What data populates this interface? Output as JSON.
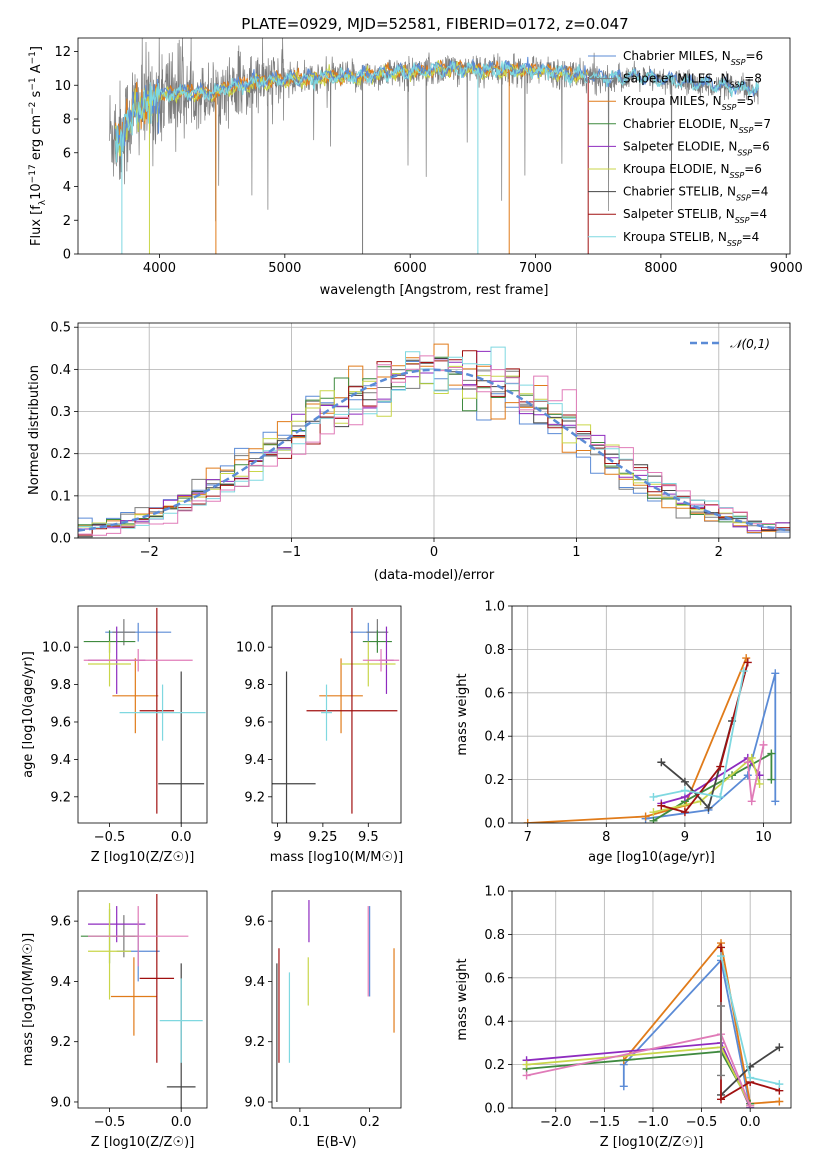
{
  "title": "PLATE=0929, MJD=52581, FIBERID=0172, z=0.047",
  "colors": {
    "Chabrier MILES": "#5b8bd6",
    "Salpeter MILES": "#7b7b7b",
    "Kroupa MILES": "#e07b1a",
    "Chabrier ELODIE": "#3f8a3f",
    "Salpeter ELODIE": "#8e2bbf",
    "Kroupa ELODIE": "#c9d64a",
    "Chabrier STELIB": "#444444",
    "Salpeter STELIB": "#a01010",
    "Kroupa STELIB": "#7fd8e0",
    "pink": "#e07bb8",
    "normal": "#5b8bd6"
  },
  "chart_data": [
    {
      "id": "spectrum",
      "type": "line",
      "title": "PLATE=0929, MJD=52581, FIBERID=0172, z=0.047",
      "xlabel": "wavelength [Angstrom, rest frame]",
      "ylabel_parts": [
        "Flux [f",
        "λ",
        "10",
        "−17",
        " erg cm",
        "−2",
        " s",
        "−1",
        " A",
        "−1",
        "]"
      ],
      "xlim": [
        3350,
        9030
      ],
      "ylim": [
        0,
        12.8
      ],
      "xticks": [
        4000,
        5000,
        6000,
        7000,
        8000,
        9000
      ],
      "yticks": [
        0,
        2,
        4,
        6,
        8,
        10,
        12
      ],
      "legend_position": "right",
      "legend": [
        {
          "name": "Chabrier MILES",
          "n": "6"
        },
        {
          "name": "Salpeter MILES",
          "n": "8"
        },
        {
          "name": "Kroupa MILES",
          "n": "5"
        },
        {
          "name": "Chabrier ELODIE",
          "n": "7"
        },
        {
          "name": "Salpeter ELODIE",
          "n": "6"
        },
        {
          "name": "Kroupa ELODIE",
          "n": "6"
        },
        {
          "name": "Chabrier STELIB",
          "n": "4"
        },
        {
          "name": "Salpeter STELIB",
          "n": "4"
        },
        {
          "name": "Kroupa STELIB",
          "n": "4"
        }
      ],
      "legend_n_prefix": "N",
      "legend_n_sub": "SSP",
      "continuum": [
        [
          3600,
          7.2
        ],
        [
          3700,
          7.0
        ],
        [
          3800,
          8.6
        ],
        [
          3900,
          8.8
        ],
        [
          4000,
          9.4
        ],
        [
          4100,
          9.5
        ],
        [
          4200,
          9.6
        ],
        [
          4400,
          9.5
        ],
        [
          4600,
          9.9
        ],
        [
          4800,
          10.2
        ],
        [
          5000,
          10.3
        ],
        [
          5200,
          10.4
        ],
        [
          5400,
          10.5
        ],
        [
          5600,
          10.5
        ],
        [
          5800,
          10.7
        ],
        [
          6000,
          10.8
        ],
        [
          6200,
          10.9
        ],
        [
          6400,
          11.0
        ],
        [
          6600,
          10.9
        ],
        [
          6800,
          10.9
        ],
        [
          7000,
          10.9
        ],
        [
          7200,
          10.7
        ],
        [
          7400,
          10.5
        ],
        [
          7600,
          10.4
        ],
        [
          7800,
          10.5
        ],
        [
          8000,
          10.3
        ],
        [
          8200,
          10.2
        ],
        [
          8400,
          10.0
        ],
        [
          8600,
          9.8
        ],
        [
          8780,
          9.7
        ]
      ]
    },
    {
      "id": "residuals",
      "type": "histogram",
      "xlabel": "(data-model)/error",
      "ylabel": "Normed distribution",
      "xlim": [
        -2.5,
        2.5
      ],
      "ylim": [
        0,
        0.51
      ],
      "xticks": [
        -2,
        -1,
        0,
        1,
        2
      ],
      "yticks": [
        0.0,
        0.1,
        0.2,
        0.3,
        0.4,
        0.5
      ],
      "bin_width": 0.1,
      "legend": "𝒩(0,1)",
      "legend_position": "top-right",
      "grid": true
    },
    {
      "id": "age-vs-Z",
      "type": "errorbar",
      "xlabel": "Z [log10(Z/Z☉)]",
      "ylabel": "age  [log10(age/yr)]",
      "xlim": [
        -0.72,
        0.18
      ],
      "ylim": [
        9.06,
        10.22
      ],
      "xticks": [
        -0.5,
        0.0
      ],
      "yticks": [
        9.2,
        9.4,
        9.6,
        9.8,
        10.0
      ],
      "points": [
        {
          "c": "Chabrier MILES",
          "x": -0.3,
          "xerr": 0.23,
          "y": 10.08,
          "yerr": 0.05
        },
        {
          "c": "Salpeter MILES",
          "x": -0.4,
          "xerr": 0.08,
          "y": 10.08,
          "yerr": 0.07
        },
        {
          "c": "Kroupa MILES",
          "x": -0.32,
          "xerr": 0.16,
          "y": 9.74,
          "yerr": 0.2
        },
        {
          "c": "Chabrier ELODIE",
          "x": -0.5,
          "xerr": 0.18,
          "y": 10.03,
          "yerr": 0.06
        },
        {
          "c": "Salpeter ELODIE",
          "x": -0.45,
          "xerr": 0.2,
          "y": 9.93,
          "yerr": 0.18
        },
        {
          "c": "Kroupa ELODIE",
          "x": -0.5,
          "xerr": 0.15,
          "y": 9.91,
          "yerr": 0.12
        },
        {
          "c": "Chabrier STELIB",
          "x": 0.0,
          "xerr": 0.16,
          "y": 9.27,
          "yerr": 0.6
        },
        {
          "c": "Salpeter STELIB",
          "x": -0.17,
          "xerr": 0.12,
          "y": 9.66,
          "yerr": 0.55
        },
        {
          "c": "Kroupa STELIB",
          "x": -0.13,
          "xerr": 0.3,
          "y": 9.65,
          "yerr": 0.15
        },
        {
          "c": "pink",
          "x": -0.3,
          "xerr": 0.38,
          "y": 9.93,
          "yerr": 0.06
        }
      ]
    },
    {
      "id": "age-vs-mass",
      "type": "errorbar",
      "xlabel": "mass [log10(M/M☉)]",
      "ylabel": "",
      "xlim": [
        8.97,
        9.68
      ],
      "ylim": [
        9.06,
        10.22
      ],
      "xticks": [
        9.0,
        9.25,
        9.5
      ],
      "yticks": [
        9.2,
        9.4,
        9.6,
        9.8,
        10.0
      ],
      "points": [
        {
          "c": "Chabrier MILES",
          "x": 9.5,
          "xerr": 0.1,
          "y": 10.08,
          "yerr": 0.05
        },
        {
          "c": "Salpeter MILES",
          "x": 9.55,
          "xerr": 0.06,
          "y": 10.08,
          "yerr": 0.07
        },
        {
          "c": "Kroupa MILES",
          "x": 9.35,
          "xerr": 0.12,
          "y": 9.74,
          "yerr": 0.2
        },
        {
          "c": "Chabrier ELODIE",
          "x": 9.55,
          "xerr": 0.08,
          "y": 10.03,
          "yerr": 0.06
        },
        {
          "c": "Salpeter ELODIE",
          "x": 9.6,
          "xerr": 0.04,
          "y": 9.93,
          "yerr": 0.18
        },
        {
          "c": "Kroupa ELODIE",
          "x": 9.5,
          "xerr": 0.15,
          "y": 9.91,
          "yerr": 0.12
        },
        {
          "c": "Chabrier STELIB",
          "x": 9.05,
          "xerr": 0.16,
          "y": 9.27,
          "yerr": 0.6
        },
        {
          "c": "Salpeter STELIB",
          "x": 9.41,
          "xerr": 0.25,
          "y": 9.66,
          "yerr": 0.55
        },
        {
          "c": "Kroupa STELIB",
          "x": 9.27,
          "xerr": 0.03,
          "y": 9.65,
          "yerr": 0.15
        },
        {
          "c": "pink",
          "x": 9.57,
          "xerr": 0.1,
          "y": 9.93,
          "yerr": 0.06
        }
      ]
    },
    {
      "id": "weight-vs-age",
      "type": "line",
      "xlabel": "age  [log10(age/yr)]",
      "ylabel": "mass weight",
      "xlim": [
        6.8,
        10.35
      ],
      "ylim": [
        0,
        1.0
      ],
      "xticks": [
        7,
        8,
        9,
        10
      ],
      "yticks": [
        0.0,
        0.2,
        0.4,
        0.6,
        0.8,
        1.0
      ],
      "grid": true,
      "series": [
        {
          "c": "Chabrier MILES",
          "points": [
            [
              8.5,
              0.02
            ],
            [
              9.3,
              0.06
            ],
            [
              9.8,
              0.22
            ],
            [
              10.15,
              0.69
            ],
            [
              10.15,
              0.1
            ]
          ]
        },
        {
          "c": "Kroupa MILES",
          "points": [
            [
              7.0,
              0.0
            ],
            [
              8.5,
              0.03
            ],
            [
              9.0,
              0.08
            ],
            [
              9.78,
              0.76
            ]
          ]
        },
        {
          "c": "Chabrier ELODIE",
          "points": [
            [
              8.6,
              0.01
            ],
            [
              9.0,
              0.1
            ],
            [
              9.6,
              0.22
            ],
            [
              10.1,
              0.32
            ],
            [
              10.1,
              0.2
            ]
          ]
        },
        {
          "c": "Salpeter ELODIE",
          "points": [
            [
              8.7,
              0.09
            ],
            [
              9.0,
              0.12
            ],
            [
              9.8,
              0.3
            ],
            [
              9.95,
              0.22
            ]
          ]
        },
        {
          "c": "Kroupa ELODIE",
          "points": [
            [
              8.6,
              0.05
            ],
            [
              9.2,
              0.1
            ],
            [
              9.85,
              0.3
            ],
            [
              9.95,
              0.18
            ]
          ]
        },
        {
          "c": "Chabrier STELIB",
          "points": [
            [
              8.7,
              0.28
            ],
            [
              9.0,
              0.19
            ],
            [
              9.3,
              0.07
            ],
            [
              9.6,
              0.47
            ]
          ]
        },
        {
          "c": "Salpeter STELIB",
          "points": [
            [
              8.7,
              0.08
            ],
            [
              9.0,
              0.05
            ],
            [
              9.45,
              0.26
            ],
            [
              9.8,
              0.74
            ]
          ]
        },
        {
          "c": "Kroupa STELIB",
          "points": [
            [
              8.6,
              0.12
            ],
            [
              9.0,
              0.15
            ],
            [
              9.45,
              0.12
            ],
            [
              9.75,
              0.7
            ]
          ]
        },
        {
          "c": "pink",
          "points": [
            [
              9.8,
              0.28
            ],
            [
              9.85,
              0.1
            ],
            [
              10.0,
              0.36
            ]
          ]
        }
      ]
    },
    {
      "id": "mass-vs-Z",
      "type": "errorbar",
      "xlabel": "Z [log10(Z/Z☉)]",
      "ylabel": "mass [log10(M/M☉)]",
      "xlim": [
        -0.72,
        0.18
      ],
      "ylim": [
        8.98,
        9.7
      ],
      "xticks": [
        -0.5,
        0.0
      ],
      "yticks": [
        9.0,
        9.2,
        9.4,
        9.6
      ],
      "points": [
        {
          "c": "Chabrier MILES",
          "x": -0.3,
          "xerr": 0.15,
          "y": 9.5,
          "yerr": 0.1
        },
        {
          "c": "Salpeter MILES",
          "x": -0.4,
          "xerr": 0.08,
          "y": 9.55,
          "yerr": 0.07
        },
        {
          "c": "Kroupa MILES",
          "x": -0.33,
          "xerr": 0.16,
          "y": 9.35,
          "yerr": 0.13
        },
        {
          "c": "Chabrier ELODIE",
          "x": -0.5,
          "xerr": 0.2,
          "y": 9.55,
          "yerr": 0.09
        },
        {
          "c": "Salpeter ELODIE",
          "x": -0.45,
          "xerr": 0.2,
          "y": 9.59,
          "yerr": 0.06
        },
        {
          "c": "Kroupa ELODIE",
          "x": -0.5,
          "xerr": 0.15,
          "y": 9.5,
          "yerr": 0.16
        },
        {
          "c": "Chabrier STELIB",
          "x": 0.0,
          "xerr": 0.1,
          "y": 9.05,
          "yerr": 0.41
        },
        {
          "c": "Salpeter STELIB",
          "x": -0.17,
          "xerr": 0.12,
          "y": 9.41,
          "yerr": 0.28
        },
        {
          "c": "Kroupa STELIB",
          "x": 0.0,
          "xerr": 0.15,
          "y": 9.27,
          "yerr": 0.14
        },
        {
          "c": "pink",
          "x": -0.3,
          "xerr": 0.35,
          "y": 9.55,
          "yerr": 0.1
        }
      ]
    },
    {
      "id": "mass-vs-EBV",
      "type": "errorbar",
      "xlabel": "E(B-V)",
      "ylabel": "",
      "xlim": [
        0.06,
        0.245
      ],
      "ylim": [
        8.98,
        9.7
      ],
      "xticks": [
        0.1,
        0.2
      ],
      "yticks": [
        9.0,
        9.2,
        9.4,
        9.6
      ],
      "points": [
        {
          "c": "Chabrier MILES",
          "x": 0.2,
          "y": 9.5,
          "yerr": 0.15
        },
        {
          "c": "Kroupa MILES",
          "x": 0.235,
          "y": 9.37,
          "yerr": 0.14
        },
        {
          "c": "Salpeter ELODIE",
          "x": 0.113,
          "y": 9.6,
          "yerr": 0.07
        },
        {
          "c": "Kroupa ELODIE",
          "x": 0.112,
          "y": 9.4,
          "yerr": 0.08
        },
        {
          "c": "Chabrier STELIB",
          "x": 0.067,
          "y": 9.23,
          "yerr": 0.23
        },
        {
          "c": "Salpeter STELIB",
          "x": 0.07,
          "y": 9.32,
          "yerr": 0.19
        },
        {
          "c": "Kroupa STELIB",
          "x": 0.085,
          "y": 9.28,
          "yerr": 0.15
        },
        {
          "c": "pink",
          "x": 0.198,
          "y": 9.5,
          "yerr": 0.15
        }
      ]
    },
    {
      "id": "weight-vs-Z",
      "type": "line",
      "xlabel": "Z [log10(Z/Z☉)]",
      "ylabel": "mass weight",
      "xlim": [
        -2.45,
        0.42
      ],
      "ylim": [
        0,
        1.0
      ],
      "xticks": [
        -2.0,
        -1.5,
        -1.0,
        -0.5,
        0.0
      ],
      "yticks": [
        0.0,
        0.2,
        0.4,
        0.6,
        0.8,
        1.0
      ],
      "grid": true,
      "series": [
        {
          "c": "Chabrier MILES",
          "points": [
            [
              -1.3,
              0.1
            ],
            [
              -1.3,
              0.2
            ],
            [
              -0.3,
              0.68
            ],
            [
              0.0,
              0.0
            ]
          ]
        },
        {
          "c": "Kroupa MILES",
          "points": [
            [
              -1.3,
              0.22
            ],
            [
              -0.3,
              0.76
            ],
            [
              0.0,
              0.02
            ],
            [
              0.3,
              0.03
            ]
          ]
        },
        {
          "c": "Chabrier ELODIE",
          "points": [
            [
              -2.3,
              0.18
            ],
            [
              -0.3,
              0.26
            ],
            [
              0.0,
              0.02
            ]
          ]
        },
        {
          "c": "Salpeter ELODIE",
          "points": [
            [
              -2.3,
              0.22
            ],
            [
              -0.3,
              0.3
            ],
            [
              0.0,
              0.0
            ]
          ]
        },
        {
          "c": "Kroupa ELODIE",
          "points": [
            [
              -2.3,
              0.2
            ],
            [
              -0.3,
              0.28
            ],
            [
              0.0,
              0.01
            ]
          ]
        },
        {
          "c": "Chabrier STELIB",
          "points": [
            [
              -0.3,
              0.06
            ],
            [
              0.0,
              0.19
            ],
            [
              0.3,
              0.28
            ]
          ]
        },
        {
          "c": "Salpeter STELIB",
          "points": [
            [
              -0.3,
              0.74
            ],
            [
              -0.3,
              0.04
            ],
            [
              0.0,
              0.12
            ],
            [
              0.3,
              0.08
            ]
          ]
        },
        {
          "c": "Kroupa STELIB",
          "points": [
            [
              -0.3,
              0.7
            ],
            [
              0.0,
              0.14
            ],
            [
              0.3,
              0.11
            ]
          ]
        },
        {
          "c": "pink",
          "points": [
            [
              -2.3,
              0.15
            ],
            [
              -0.3,
              0.34
            ],
            [
              0.0,
              0.01
            ]
          ]
        },
        {
          "c": "Salpeter MILES",
          "points": [
            [
              -0.3,
              0.47
            ],
            [
              -0.3,
              0.15
            ]
          ]
        }
      ]
    }
  ]
}
